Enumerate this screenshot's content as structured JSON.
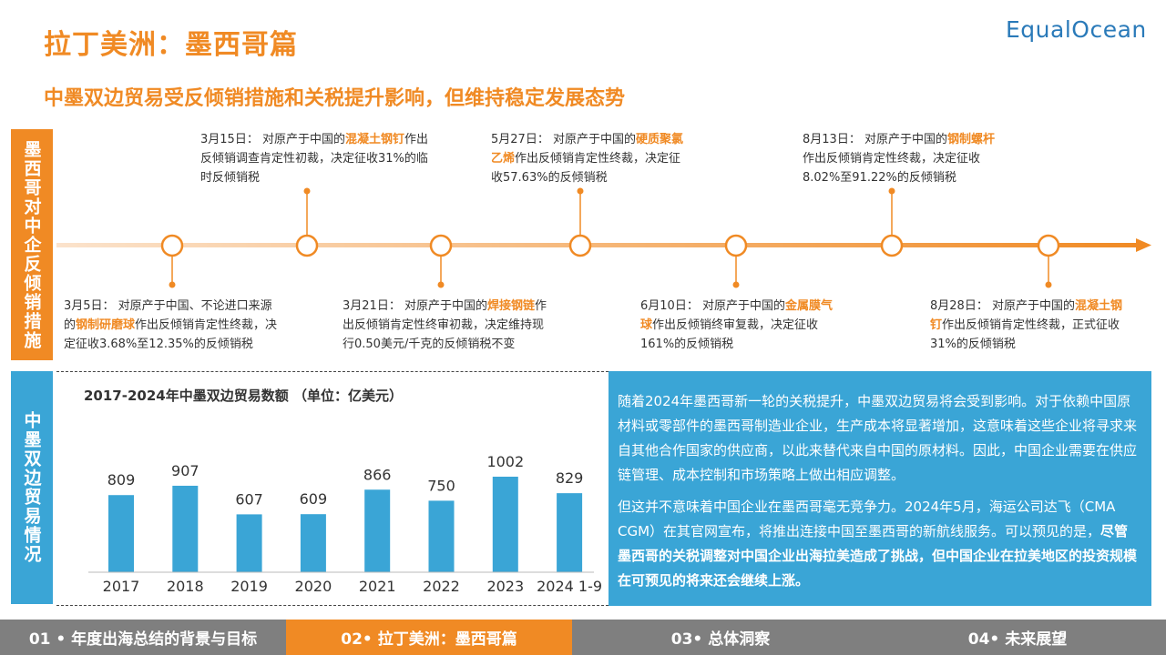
{
  "header": {
    "title": "拉丁美洲：墨西哥篇",
    "subtitle": "中墨双边贸易受反倾销措施和关税提升影响，但维持稳定发展态势",
    "logo_text": "EqualOcean"
  },
  "side_labels": {
    "top": "墨西哥对中企反倾销措施",
    "bottom": "中墨双边贸易情况"
  },
  "timeline": {
    "above": [
      {
        "pre": "3月15日：  对原产于中国的",
        "hl": "混凝土钢钉",
        "post": "作出反倾销调查肯定性初裁，决定征收31%的临时反倾销税"
      },
      {
        "pre": "5月27日：  对原产于中国的",
        "hl": "硬质聚氯乙烯",
        "post": "作出反倾销肯定性终裁，决定征收57.63%的反倾销税"
      },
      {
        "pre": "8月13日：  对原产于中国的",
        "hl": "钢制螺杆",
        "post": "作出反倾销肯定性终裁，决定征收8.02%至91.22%的反倾销税"
      }
    ],
    "below": [
      {
        "pre": "3月5日：  对原产于中国、不论进口来源的",
        "hl": "钢制研磨球",
        "post": "作出反倾销肯定性终裁，决定征收3.68%至12.35%的反倾销税"
      },
      {
        "pre": "3月21日：  对原产于中国的",
        "hl": "焊接钢链",
        "post": "作出反倾销肯定性终审初裁，决定维持现行0.50美元/千克的反倾销税不变"
      },
      {
        "pre": "6月10日：  对原产于中国的",
        "hl": "金属膜气球",
        "post": "作出反倾销终审复裁，决定征收161%的反倾销税"
      },
      {
        "pre": "8月28日：  对原产于中国的",
        "hl": "混凝土钢钉",
        "post": "作出反倾销肯定性终裁，正式征收31%的反倾销税"
      }
    ]
  },
  "chart_data": {
    "type": "bar",
    "title": "2017-2024年中墨双边贸易数额  （单位：亿美元）",
    "categories": [
      "2017",
      "2018",
      "2019",
      "2020",
      "2021",
      "2022",
      "2023",
      "2024 1-9"
    ],
    "values": [
      809,
      907,
      607,
      609,
      866,
      750,
      1002,
      829
    ],
    "bar_color": "#3aa5d6",
    "xlabel": "",
    "ylabel": "",
    "ylim": [
      0,
      1002
    ],
    "grid": false
  },
  "text_panel": {
    "p1": "随着2024年墨西哥新一轮的关税提升，中墨双边贸易将会受到影响。对于依赖中国原材料或零部件的墨西哥制造业企业，生产成本将显著增加，这意味着这些企业将寻求来自其他合作国家的供应商，以此来替代来自中国的原材料。因此，中国企业需要在供应链管理、成本控制和市场策略上做出相应调整。",
    "p2_normal": "但这并不意味着中国企业在墨西哥毫无竞争力。2024年5月，海运公司达飞（CMA CGM）在其官网宣布，将推出连接中国至墨西哥的新航线服务。可以预见的是，",
    "p2_bold": "尽管墨西哥的关税调整对中国企业出海拉美造成了挑战，但中国企业在拉美地区的投资规模在可预见的将来还会继续上涨。"
  },
  "nav": {
    "item1": "01 • 年度出海总结的背景与目标",
    "item2": "02• 拉丁美洲：墨西哥篇",
    "item3": "03• 总体洞察",
    "item4": "04• 未来展望"
  },
  "colors": {
    "accent": "#f08a24",
    "blue": "#3aa5d6",
    "nav_gray": "#7f7f7f"
  }
}
